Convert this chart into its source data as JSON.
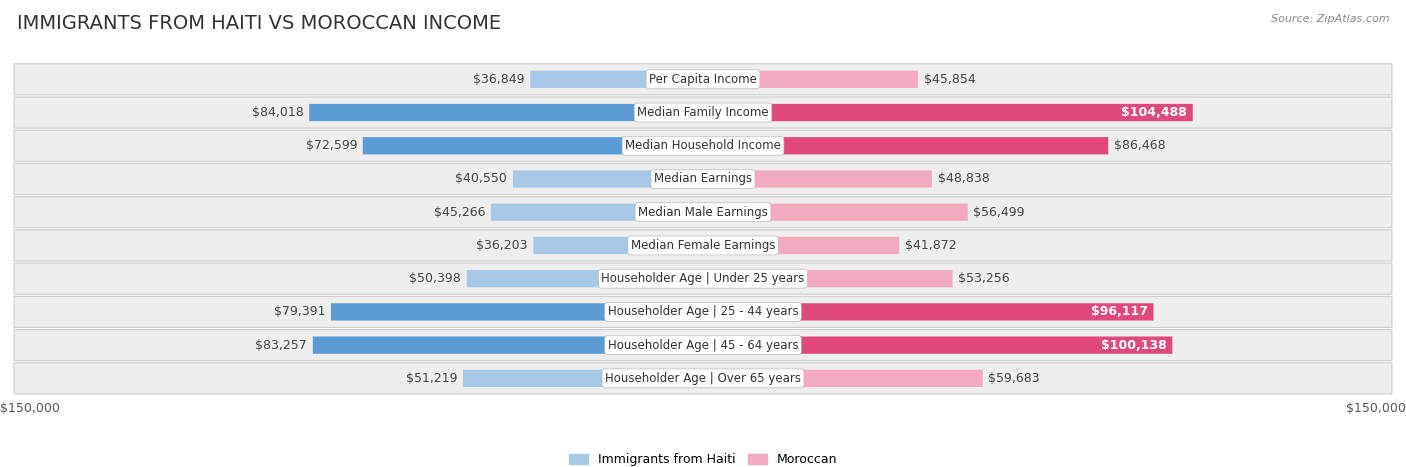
{
  "title": "IMMIGRANTS FROM HAITI VS MOROCCAN INCOME",
  "source": "Source: ZipAtlas.com",
  "categories": [
    "Per Capita Income",
    "Median Family Income",
    "Median Household Income",
    "Median Earnings",
    "Median Male Earnings",
    "Median Female Earnings",
    "Householder Age | Under 25 years",
    "Householder Age | 25 - 44 years",
    "Householder Age | 45 - 64 years",
    "Householder Age | Over 65 years"
  ],
  "haiti_values": [
    36849,
    84018,
    72599,
    40550,
    45266,
    36203,
    50398,
    79391,
    83257,
    51219
  ],
  "moroccan_values": [
    45854,
    104488,
    86468,
    48838,
    56499,
    41872,
    53256,
    96117,
    100138,
    59683
  ],
  "haiti_labels": [
    "$36,849",
    "$84,018",
    "$72,599",
    "$40,550",
    "$45,266",
    "$36,203",
    "$50,398",
    "$79,391",
    "$83,257",
    "$51,219"
  ],
  "moroccan_labels": [
    "$45,854",
    "$104,488",
    "$86,468",
    "$48,838",
    "$56,499",
    "$41,872",
    "$53,256",
    "$96,117",
    "$100,138",
    "$59,683"
  ],
  "haiti_colors": [
    "#A8C8E8",
    "#5B9BD5",
    "#5B9BD5",
    "#A8C8E8",
    "#A8C8E8",
    "#A8C8E8",
    "#A8C8E8",
    "#5B9BD5",
    "#5B9BD5",
    "#A8C8E8"
  ],
  "moroccan_colors": [
    "#F4AABE",
    "#E0497A",
    "#E0497A",
    "#F4AABE",
    "#F4AABE",
    "#F4AABE",
    "#F4AABE",
    "#E0497A",
    "#E0497A",
    "#F4AABE"
  ],
  "moroccan_label_inside": [
    false,
    true,
    false,
    false,
    false,
    false,
    false,
    true,
    true,
    false
  ],
  "max_value": 150000,
  "axis_label_left": "$150,000",
  "axis_label_right": "$150,000",
  "legend_haiti": "Immigrants from Haiti",
  "legend_moroccan": "Moroccan",
  "background_color": "#ffffff",
  "row_bg_color": "#eeeeee",
  "title_fontsize": 14,
  "label_fontsize": 9,
  "cat_fontsize": 8.5
}
